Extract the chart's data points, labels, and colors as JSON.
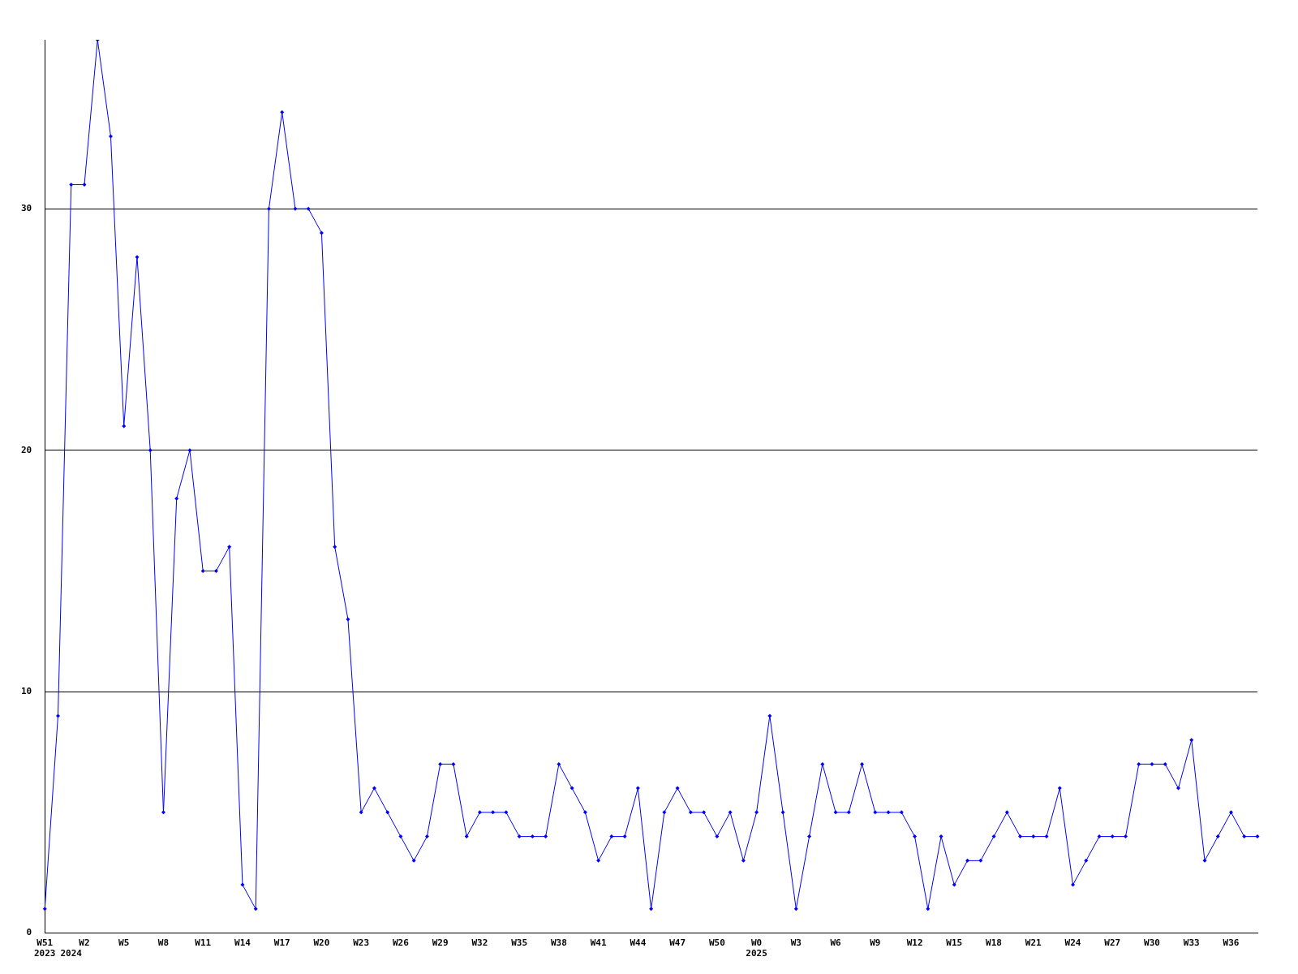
{
  "chart_data": {
    "type": "line",
    "categories": [
      "W51\n2023",
      null,
      "\n2024",
      "W2",
      null,
      null,
      "W5",
      null,
      null,
      "W8",
      null,
      null,
      "W11",
      null,
      null,
      "W14",
      null,
      null,
      "W17",
      null,
      null,
      "W20",
      null,
      null,
      "W23",
      null,
      null,
      "W26",
      null,
      null,
      "W29",
      null,
      null,
      "W32",
      null,
      null,
      "W35",
      null,
      null,
      "W38",
      null,
      null,
      "W41",
      null,
      null,
      "W44",
      null,
      null,
      "W47",
      null,
      null,
      "W50",
      null,
      null,
      "W0\n2025",
      null,
      null,
      "W3",
      null,
      null,
      "W6",
      null,
      null,
      "W9",
      null,
      null,
      "W12",
      null,
      null,
      "W15",
      null,
      null,
      "W18",
      null,
      null,
      "W21",
      null,
      null,
      "W24",
      null,
      null,
      "W27",
      null,
      null,
      "W30",
      null,
      null,
      "W33",
      null,
      null,
      "W36",
      null,
      null
    ],
    "series": [
      {
        "color": "#0000ff",
        "values": [
          1,
          9,
          31,
          31,
          37,
          33,
          21,
          28,
          20,
          5,
          18,
          20,
          15,
          15,
          16,
          2,
          1,
          30,
          34,
          30,
          30,
          29,
          16,
          13,
          5,
          6,
          5,
          4,
          3,
          4,
          7,
          7,
          4,
          5,
          5,
          5,
          4,
          4,
          4,
          7,
          6,
          5,
          3,
          4,
          4,
          6,
          1,
          5,
          6,
          5,
          5,
          4,
          5,
          3,
          5,
          9,
          5,
          1,
          4,
          7,
          5,
          5,
          7,
          5,
          5,
          5,
          4,
          1,
          4,
          2,
          3,
          3,
          4,
          5,
          4,
          4,
          4,
          6,
          2,
          3,
          4,
          4,
          4,
          7,
          7,
          7,
          6,
          8,
          3,
          4,
          5,
          4,
          4
        ]
      }
    ],
    "ylim": [
      0,
      37
    ],
    "yticks": [
      0,
      10,
      20,
      30
    ],
    "grid": "y",
    "marker": "diamond",
    "line_style": "solid"
  }
}
